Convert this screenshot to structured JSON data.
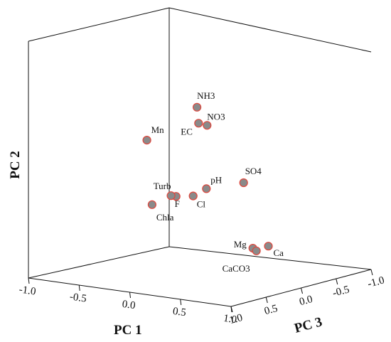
{
  "chart_data": {
    "type": "scatter",
    "title": "",
    "axes": {
      "x": {
        "label": "PC 1",
        "range": [
          -1.0,
          1.0
        ],
        "ticks": [
          "-1.0",
          "-0.5",
          "0.0",
          "0.5",
          "1.0"
        ]
      },
      "z": {
        "label": "PC 3",
        "range": [
          -1.0,
          1.0
        ],
        "ticks": [
          "1.0",
          "0.5",
          "0.0",
          "-0.5",
          "-1.0"
        ]
      },
      "y": {
        "label": "PC 2"
      }
    },
    "points": [
      {
        "label": "NH3",
        "pc1": 0.15,
        "pc2": 0.7,
        "pc3": -0.1
      },
      {
        "label": "NO3",
        "pc1": 0.25,
        "pc2": 0.56,
        "pc3": -0.1
      },
      {
        "label": "EC",
        "pc1": 0.2,
        "pc2": 0.58,
        "pc3": -0.05
      },
      {
        "label": "Mn",
        "pc1": -0.45,
        "pc2": 0.33,
        "pc3": -0.25
      },
      {
        "label": "SO4",
        "pc1": 0.75,
        "pc2": 0.17,
        "pc3": 0.1
      },
      {
        "label": "pH",
        "pc1": 0.45,
        "pc2": 0.1,
        "pc3": 0.2
      },
      {
        "label": "Turb",
        "pc1": 0.15,
        "pc2": 0.0,
        "pc3": 0.2
      },
      {
        "label": "Cl",
        "pc1": 0.25,
        "pc2": 0.0,
        "pc3": 0.1
      },
      {
        "label": "F",
        "pc1": 0.1,
        "pc2": 0.0,
        "pc3": 0.2
      },
      {
        "label": "Chla",
        "pc1": 0.05,
        "pc2": -0.05,
        "pc3": 0.4
      },
      {
        "label": "Mg",
        "pc1": 0.6,
        "pc2": -0.45,
        "pc3": -0.25
      },
      {
        "label": "Ca",
        "pc1": 0.65,
        "pc2": -0.45,
        "pc3": -0.4
      },
      {
        "label": "CaCO3",
        "pc1": 0.6,
        "pc2": -0.48,
        "pc3": -0.3
      }
    ],
    "colors": {
      "marker_fill": "#8a8a8a",
      "marker_edge": "#e0463c",
      "box_lines": "#111111"
    }
  }
}
